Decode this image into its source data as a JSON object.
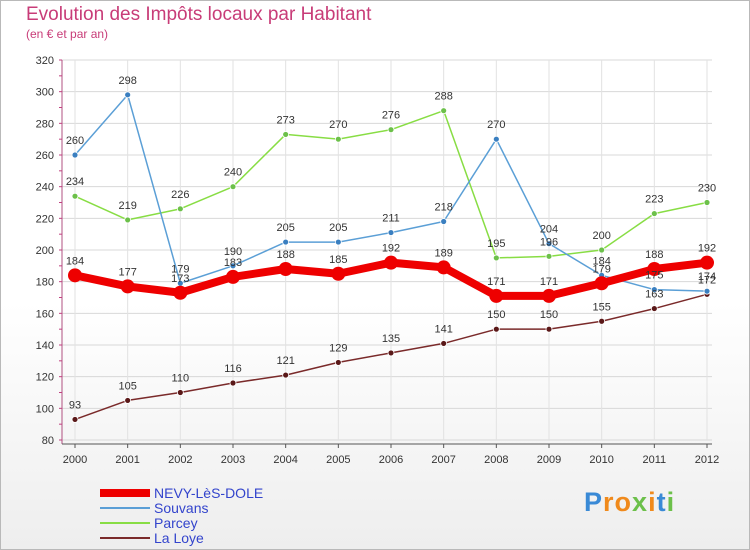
{
  "title": "Evolution des Impôts locaux par Habitant",
  "subtitle": "(en € et par an)",
  "brand": "Proxiti",
  "chart_data": {
    "type": "line",
    "x": [
      "2000",
      "2001",
      "2002",
      "2003",
      "2004",
      "2005",
      "2006",
      "2007",
      "2008",
      "2009",
      "2010",
      "2011",
      "2012"
    ],
    "ylim": [
      80,
      320
    ],
    "yticks": [
      80,
      100,
      120,
      140,
      160,
      180,
      200,
      220,
      240,
      260,
      280,
      300,
      320
    ],
    "legend_position": "bottom-left",
    "series": [
      {
        "name": "NEVY-LèS-DOLE",
        "color": "#ee0000",
        "values": [
          184,
          177,
          173,
          183,
          188,
          185,
          192,
          189,
          171,
          171,
          179,
          188,
          192
        ],
        "labels": [
          "184",
          "177",
          "173",
          "183",
          "188",
          "185",
          "192",
          "189",
          "171",
          "171",
          "179",
          "188",
          "192"
        ]
      },
      {
        "name": "Souvans",
        "color": "#5b9fd6",
        "values": [
          260,
          298,
          179,
          190,
          205,
          205,
          211,
          218,
          270,
          204,
          184,
          175,
          174
        ],
        "labels": [
          "260",
          "298",
          "179",
          "190",
          "205",
          "205",
          "211",
          "218",
          "270",
          "204",
          "184",
          "175",
          "174"
        ]
      },
      {
        "name": "Parcey",
        "color": "#88dd44",
        "values": [
          234,
          219,
          226,
          240,
          273,
          270,
          276,
          288,
          195,
          196,
          200,
          223,
          230
        ],
        "labels": [
          "234",
          "219",
          "226",
          "240",
          "273",
          "270",
          "276",
          "288",
          "195",
          "196",
          "200",
          "223",
          "230"
        ]
      },
      {
        "name": "La Loye",
        "color": "#7a2a2a",
        "values": [
          93,
          105,
          110,
          116,
          121,
          129,
          135,
          141,
          150,
          150,
          155,
          163,
          172
        ],
        "labels": [
          "93",
          "105",
          "110",
          "116",
          "121",
          "129",
          "135",
          "141",
          "150",
          "150",
          "155",
          "163",
          "172"
        ]
      }
    ]
  }
}
